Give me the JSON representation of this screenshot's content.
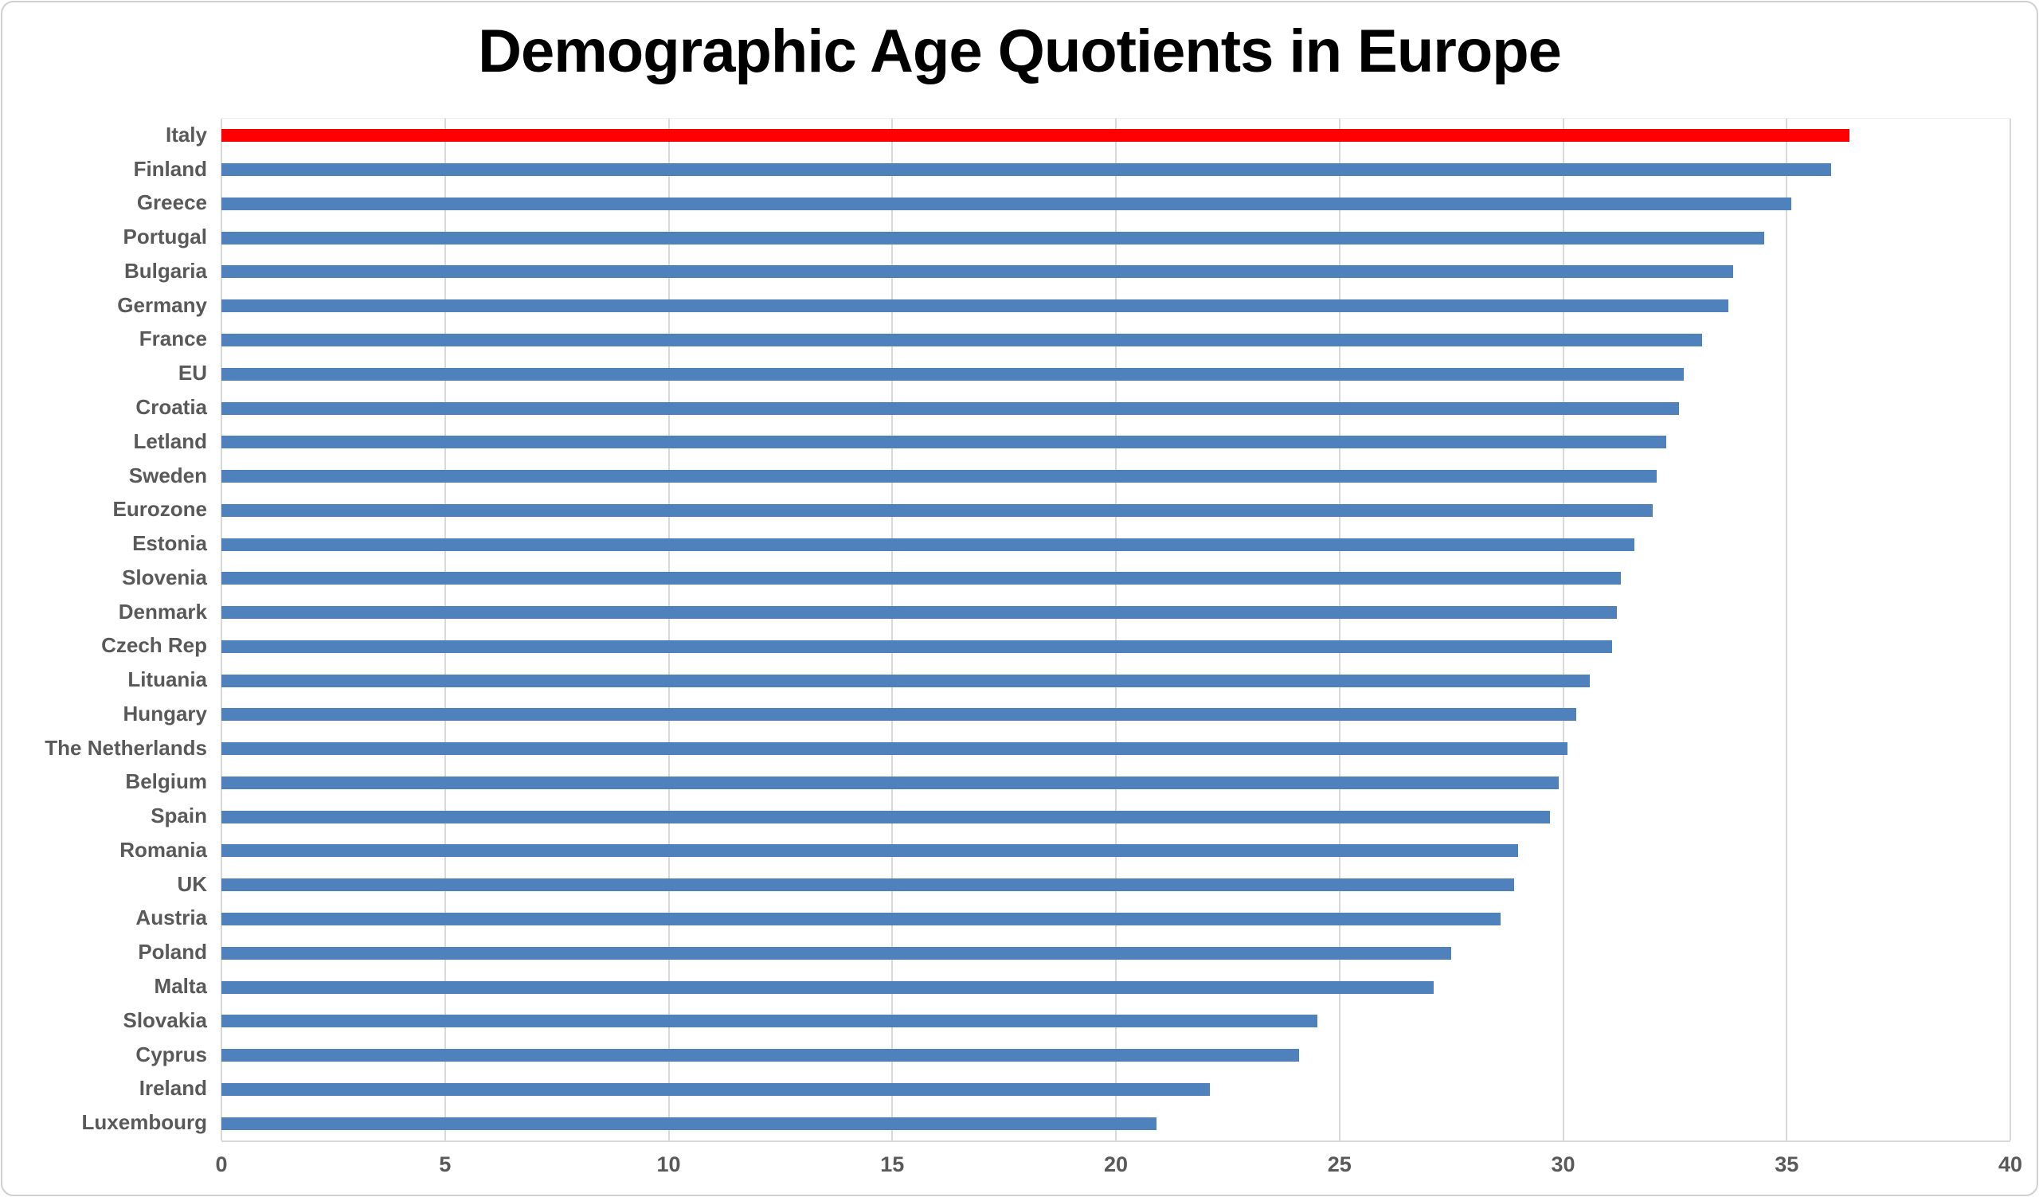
{
  "chart_data": {
    "type": "bar",
    "orientation": "horizontal",
    "title": "Demographic Age Quotients in Europe",
    "categories": [
      "Italy",
      "Finland",
      "Greece",
      "Portugal",
      "Bulgaria",
      "Germany",
      "France",
      "EU",
      "Croatia",
      "Letland",
      "Sweden",
      "Eurozone",
      "Estonia",
      "Slovenia",
      "Denmark",
      "Czech Rep",
      "Lituania",
      "Hungary",
      "The Netherlands",
      "Belgium",
      "Spain",
      "Romania",
      "UK",
      "Austria",
      "Poland",
      "Malta",
      "Slovakia",
      "Cyprus",
      "Ireland",
      "Luxembourg"
    ],
    "values": [
      36.4,
      36.0,
      35.1,
      34.5,
      33.8,
      33.7,
      33.1,
      32.7,
      32.6,
      32.3,
      32.1,
      32.0,
      31.6,
      31.3,
      31.2,
      31.1,
      30.6,
      30.3,
      30.1,
      29.9,
      29.7,
      29.0,
      28.9,
      28.6,
      27.5,
      27.1,
      24.5,
      24.1,
      22.1,
      20.9
    ],
    "highlight": {
      "category": "Italy",
      "color": "#ff0000"
    },
    "bar_color": "#4f81bd",
    "xlim": [
      0,
      40
    ],
    "x_ticks": [
      0,
      5,
      10,
      15,
      20,
      25,
      30,
      35,
      40
    ],
    "xlabel": "",
    "ylabel": "",
    "grid": "vertical-major-only",
    "legend": "none",
    "text_color": "#595959",
    "gridline_color": "#d9d9d9",
    "frame_border_color": "#d0d0d0",
    "background_color": "#ffffff"
  }
}
